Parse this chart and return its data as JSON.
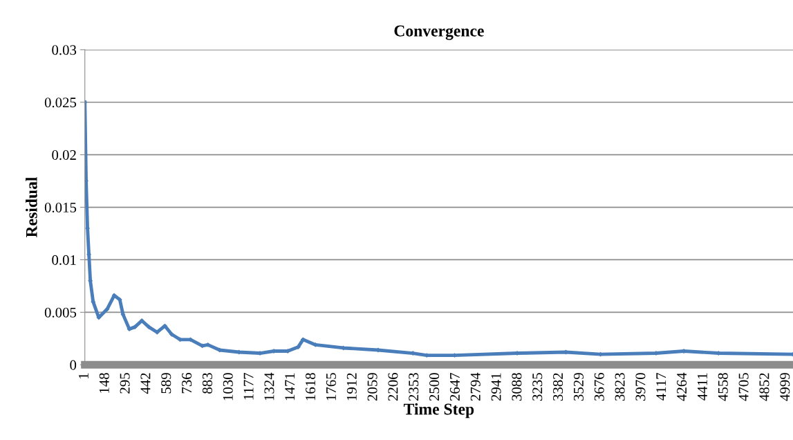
{
  "chart_data": {
    "type": "line",
    "title": "Convergence",
    "xlabel": "Time Step",
    "ylabel": "Residual",
    "x": [
      1,
      10,
      20,
      30,
      40,
      60,
      100,
      160,
      210,
      250,
      273,
      318,
      358,
      407,
      457,
      516,
      571,
      620,
      680,
      754,
      838,
      878,
      962,
      1100,
      1249,
      1348,
      1447,
      1522,
      1556,
      1645,
      1843,
      2091,
      2339,
      2438,
      2636,
      3082,
      3429,
      3676,
      4072,
      4270,
      4518,
      5048
    ],
    "series": [
      {
        "color": "#4a7ebb",
        "values": [
          0.025,
          0.0175,
          0.013,
          0.0105,
          0.008,
          0.006,
          0.0045,
          0.0053,
          0.0066,
          0.0062,
          0.0048,
          0.0034,
          0.0036,
          0.0042,
          0.0036,
          0.0031,
          0.0037,
          0.0029,
          0.0024,
          0.0024,
          0.0018,
          0.0019,
          0.0014,
          0.0012,
          0.0011,
          0.0013,
          0.0013,
          0.0017,
          0.0024,
          0.0019,
          0.0016,
          0.0014,
          0.0011,
          0.0009,
          0.0009,
          0.0011,
          0.0012,
          0.001,
          0.0011,
          0.0013,
          0.0011,
          0.001
        ]
      }
    ],
    "xlim": [
      1,
      5048
    ],
    "xticks": [
      1,
      148,
      295,
      442,
      589,
      736,
      883,
      1030,
      1177,
      1324,
      1471,
      1618,
      1765,
      1912,
      2059,
      2206,
      2353,
      2500,
      2647,
      2794,
      2941,
      3088,
      3235,
      3382,
      3529,
      3676,
      3823,
      3970,
      4117,
      4264,
      4411,
      4558,
      4705,
      4852,
      4999
    ],
    "ylim": [
      0,
      0.03
    ],
    "yticks": [
      0,
      0.005,
      0.01,
      0.015,
      0.02,
      0.025,
      0.03
    ],
    "grid": "y",
    "marker": "diamond",
    "line_style": "solid"
  }
}
